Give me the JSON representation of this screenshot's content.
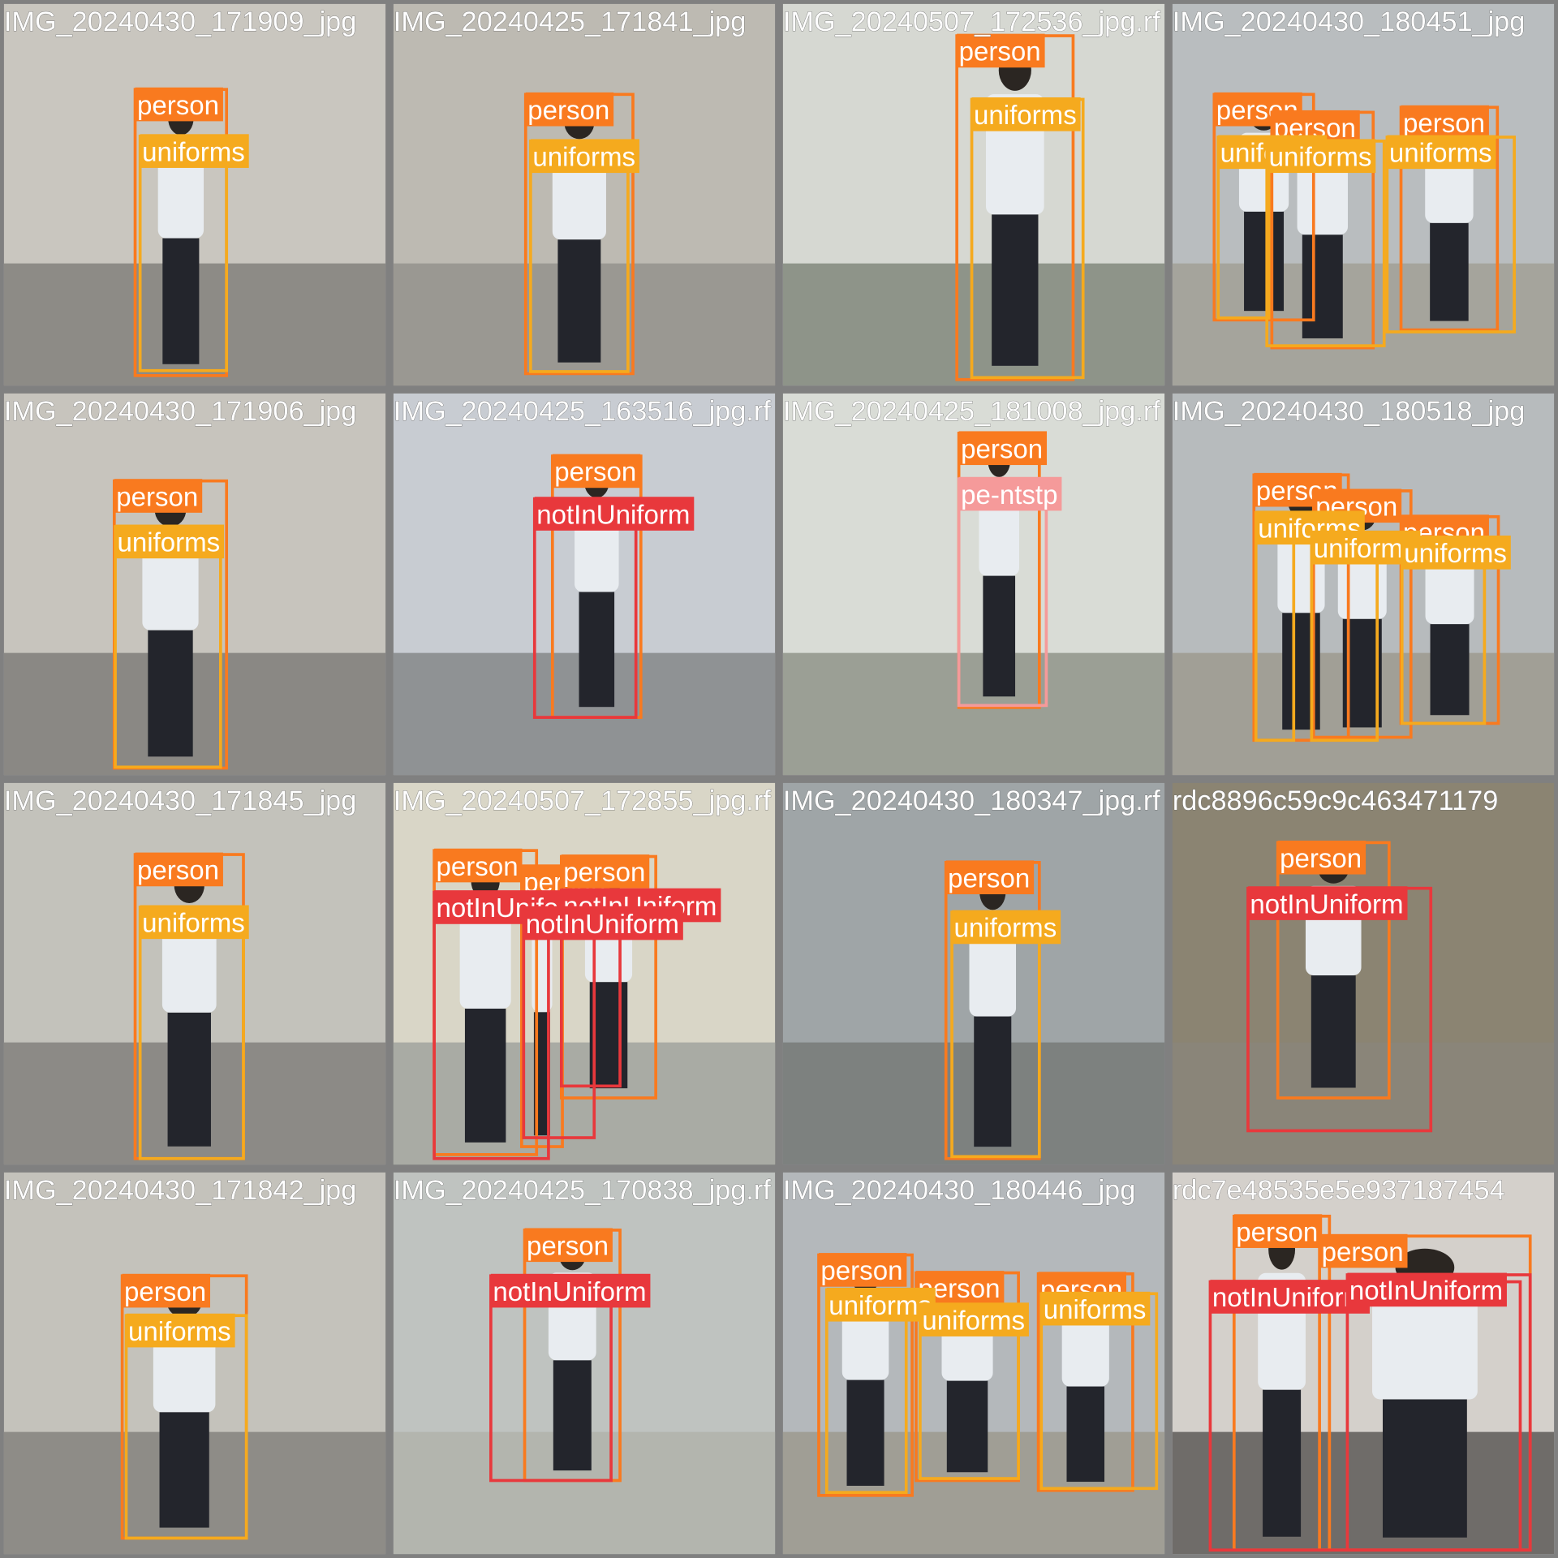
{
  "tiles": [
    {
      "filename": "IMG_20240430_171909_jpg",
      "labels": [
        "person",
        "uniforms"
      ]
    },
    {
      "filename": "IMG_20240425_171841_jpg",
      "labels": [
        "person",
        "uniforms"
      ]
    },
    {
      "filename": "IMG_20240507_172536_jpg.rf",
      "labels": [
        "person",
        "uniforms"
      ]
    },
    {
      "filename": "IMG_20240430_180451_jpg",
      "labels": [
        "person",
        "person",
        "person",
        "uniforms",
        "uniforms",
        "uniforms"
      ]
    },
    {
      "filename": "IMG_20240430_171906_jpg",
      "labels": [
        "person",
        "uniforms"
      ]
    },
    {
      "filename": "IMG_20240425_163516_jpg.rf",
      "labels": [
        "person",
        "notInUniform"
      ]
    },
    {
      "filename": "IMG_20240425_181008_jpg.rf",
      "labels": [
        "person",
        "pe-ntstp"
      ]
    },
    {
      "filename": "IMG_20240430_180518_jpg",
      "labels": [
        "person",
        "person",
        "person",
        "uniforms",
        "uniforms",
        "uniforms"
      ]
    },
    {
      "filename": "IMG_20240430_171845_jpg",
      "labels": [
        "person",
        "uniforms"
      ]
    },
    {
      "filename": "IMG_20240507_172855_jpg.rf",
      "labels": [
        "person",
        "person",
        "person",
        "notInUniform",
        "notInUniform",
        "notInUniform"
      ]
    },
    {
      "filename": "IMG_20240430_180347_jpg.rf",
      "labels": [
        "person",
        "uniforms"
      ]
    },
    {
      "filename": "rdc8896c59c9c463471179",
      "labels": [
        "person",
        "notInUniform"
      ]
    },
    {
      "filename": "IMG_20240430_171842_jpg",
      "labels": [
        "person",
        "uniforms"
      ]
    },
    {
      "filename": "IMG_20240425_170838_jpg.rf",
      "labels": [
        "person",
        "notInUniform"
      ]
    },
    {
      "filename": "IMG_20240430_180446_jpg",
      "labels": [
        "person",
        "person",
        "person",
        "uniforms",
        "uniforms",
        "uniforms"
      ]
    },
    {
      "filename": "rdc7e48535e5e937187454",
      "labels": [
        "person",
        "person",
        "notInUniform",
        "notInUniform"
      ]
    }
  ]
}
